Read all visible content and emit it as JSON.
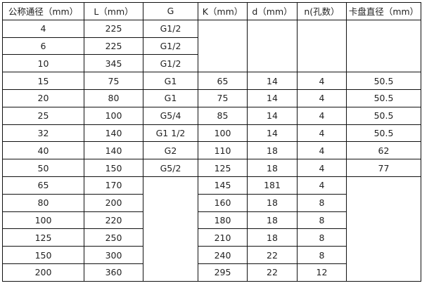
{
  "headers": [
    "公称通径（mm）",
    "L（mm）",
    "G",
    "K（mm）",
    "d（mm）",
    "n(孔数）",
    "卡盘直径（mm）"
  ],
  "rows": [
    {
      "dn": "4",
      "L": "225",
      "G": "G1/2"
    },
    {
      "dn": "6",
      "L": "225",
      "G": "G1/2"
    },
    {
      "dn": "10",
      "L": "345",
      "G": "G1/2"
    },
    {
      "dn": "15",
      "L": "75",
      "G": "G1",
      "K": "65",
      "d": "14",
      "n": "4",
      "chuck": "50.5"
    },
    {
      "dn": "20",
      "L": "80",
      "G": "G1",
      "K": "75",
      "d": "14",
      "n": "4",
      "chuck": "50.5"
    },
    {
      "dn": "25",
      "L": "100",
      "G": "G5/4",
      "K": "85",
      "d": "14",
      "n": "4",
      "chuck": "50.5"
    },
    {
      "dn": "32",
      "L": "140",
      "G": "G1  1/2",
      "K": "100",
      "d": "14",
      "n": "4",
      "chuck": "50.5"
    },
    {
      "dn": "40",
      "L": "140",
      "G": "G2",
      "K": "110",
      "d": "18",
      "n": "4",
      "chuck": "62"
    },
    {
      "dn": "50",
      "L": "150",
      "G": "G5/2",
      "K": "125",
      "d": "18",
      "n": "4",
      "chuck": "77"
    },
    {
      "dn": "65",
      "L": "170",
      "K": "145",
      "d": "181",
      "n": "4"
    },
    {
      "dn": "80",
      "L": "200",
      "K": "160",
      "d": "18",
      "n": "8"
    },
    {
      "dn": "100",
      "L": "220",
      "K": "180",
      "d": "18",
      "n": "8"
    },
    {
      "dn": "125",
      "L": "250",
      "K": "210",
      "d": "18",
      "n": "8"
    },
    {
      "dn": "150",
      "L": "300",
      "K": "240",
      "d": "22",
      "n": "8"
    },
    {
      "dn": "200",
      "L": "360",
      "K": "295",
      "d": "22",
      "n": "12"
    }
  ]
}
